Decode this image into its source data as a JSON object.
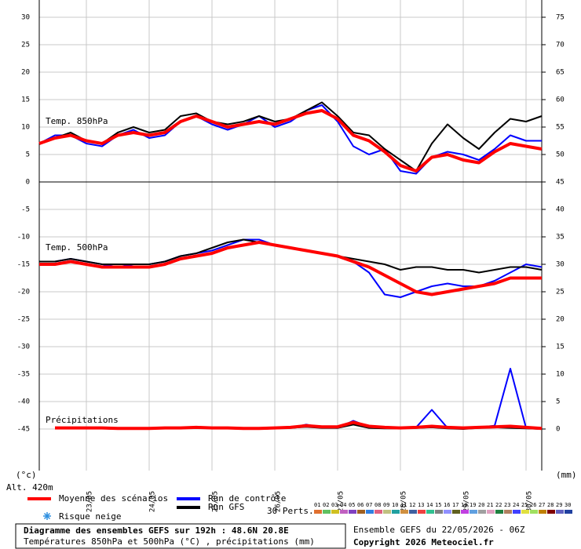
{
  "chart_data": {
    "type": "line",
    "categories": [
      null,
      null,
      null,
      "23/05",
      null,
      null,
      null,
      "24/05",
      null,
      null,
      null,
      "25/05",
      null,
      null,
      null,
      "26/05",
      null,
      null,
      null,
      "27/05",
      null,
      null,
      null,
      "28/05",
      null,
      null,
      null,
      "29/05",
      null,
      null,
      null,
      "30/05",
      null
    ],
    "ylim": [
      -52.57,
      33.14
    ],
    "yticks": [
      30,
      25,
      20,
      15,
      10,
      5,
      0,
      -5,
      -10,
      -15,
      -20,
      -25,
      -30,
      -35,
      -40,
      -45
    ],
    "y2lim": [
      -7.57,
      78.14
    ],
    "y2ticks": [
      75,
      70,
      65,
      60,
      55,
      50,
      45,
      40,
      35,
      30,
      25,
      20,
      15,
      10,
      5,
      0
    ],
    "grid": true,
    "y_label": "(°c)",
    "y2_label": "(mm)",
    "altitude": "Alt. 420m",
    "panels": [
      {
        "label": "Temp. 850hPa",
        "series": [
          {
            "color": "#0000ff",
            "width": 2,
            "values": [
              7,
              8.5,
              8.5,
              7,
              6.5,
              8.5,
              9.5,
              8,
              8.5,
              11,
              12,
              10.5,
              9.5,
              10.5,
              12,
              10,
              11,
              13,
              14,
              11,
              6.5,
              5,
              6,
              2,
              1.5,
              4.5,
              5.5,
              5,
              4,
              6,
              8.5,
              7.5,
              7.5
            ]
          },
          {
            "color": "#000000",
            "width": 2,
            "values": [
              7,
              8,
              9,
              7.5,
              7,
              9,
              10,
              9,
              9.5,
              12,
              12.5,
              11,
              10.5,
              11,
              12,
              11,
              11.5,
              13,
              14.5,
              12,
              9,
              8.5,
              6,
              4,
              2,
              7,
              10.5,
              8,
              6,
              9,
              11.5,
              11,
              12
            ]
          },
          {
            "color": "#ff0000",
            "width": 4,
            "values": [
              7,
              8,
              8.5,
              7.5,
              7,
              8.5,
              9,
              8.5,
              9,
              11,
              12,
              11,
              10,
              10.5,
              11,
              10.5,
              11.5,
              12.5,
              13,
              11.5,
              8.5,
              7.5,
              5.5,
              3,
              2,
              4.5,
              5,
              4,
              3.5,
              5.5,
              7,
              6.5,
              6
            ]
          }
        ]
      },
      {
        "label": "Temp. 500hPa",
        "series": [
          {
            "color": "#0000ff",
            "width": 2,
            "values": [
              -14.5,
              -14.5,
              -14,
              -14.5,
              -15,
              -15.5,
              -15,
              -15,
              -14.5,
              -13.5,
              -13,
              -12.5,
              -11.5,
              -10.5,
              -10.5,
              -11.5,
              -12,
              -12.5,
              -13,
              -13.5,
              -14.5,
              -16.5,
              -20.5,
              -21,
              -20,
              -19,
              -18.5,
              -19,
              -19,
              -18,
              -16.5,
              -15,
              -15.5
            ]
          },
          {
            "color": "#000000",
            "width": 2,
            "values": [
              -14.5,
              -14.5,
              -14,
              -14.5,
              -15,
              -15,
              -15,
              -15,
              -14.5,
              -13.5,
              -13,
              -12,
              -11,
              -10.5,
              -11,
              -11.5,
              -12,
              -12.5,
              -13,
              -13.5,
              -14,
              -14.5,
              -15,
              -16,
              -15.5,
              -15.5,
              -16,
              -16,
              -16.5,
              -16,
              -15.5,
              -15.5,
              -16
            ]
          },
          {
            "color": "#ff0000",
            "width": 4,
            "values": [
              -15,
              -15,
              -14.5,
              -15,
              -15.5,
              -15.5,
              -15.5,
              -15.5,
              -15,
              -14,
              -13.5,
              -13,
              -12,
              -11.5,
              -11,
              -11.5,
              -12,
              -12.5,
              -13,
              -13.5,
              -14.5,
              -15.5,
              -17,
              -18.5,
              -20,
              -20.5,
              -20,
              -19.5,
              -19,
              -18.5,
              -17.5,
              -17.5,
              -17.5
            ]
          }
        ]
      },
      {
        "label": "Précipitations",
        "series": [
          {
            "color": "#0000ff",
            "width": 2,
            "axis": "y2",
            "values": [
              null,
              0.1,
              0.1,
              0.1,
              0.1,
              0,
              0,
              0.1,
              0.1,
              0.1,
              0.2,
              0.1,
              0.2,
              0,
              0,
              0.1,
              0.2,
              0.8,
              0.3,
              0.2,
              1.5,
              0.4,
              0.2,
              0.1,
              0.3,
              3.5,
              0.2,
              0.1,
              0.3,
              0.6,
              11,
              0.2,
              0
            ]
          },
          {
            "color": "#000000",
            "width": 2,
            "axis": "y2",
            "values": [
              null,
              0.1,
              0.1,
              0.1,
              0.1,
              0,
              0,
              0.1,
              0.1,
              0.1,
              0.3,
              0.1,
              0.1,
              0,
              0,
              0.1,
              0.2,
              0.4,
              0.2,
              0.2,
              0.8,
              0.2,
              0.1,
              0.1,
              0.2,
              0.3,
              0.1,
              0,
              0.2,
              0.3,
              0.2,
              0.1,
              0
            ]
          },
          {
            "color": "#ff0000",
            "width": 4,
            "axis": "y2",
            "values": [
              null,
              0.2,
              0.2,
              0.2,
              0.2,
              0.1,
              0.1,
              0.1,
              0.2,
              0.2,
              0.3,
              0.2,
              0.2,
              0.1,
              0.1,
              0.2,
              0.3,
              0.6,
              0.4,
              0.4,
              1.2,
              0.5,
              0.3,
              0.2,
              0.3,
              0.5,
              0.3,
              0.2,
              0.3,
              0.4,
              0.5,
              0.3,
              0.1
            ]
          }
        ]
      }
    ],
    "legend": [
      {
        "name": "Moyenne des scénarios",
        "color": "#ff0000"
      },
      {
        "name": "Run de contrôle",
        "color": "#0000ff"
      },
      {
        "name": "Run GFS",
        "color": "#000000"
      }
    ],
    "snow_label": "Risque neige",
    "perturbations": {
      "label": "30 Perts.",
      "names": [
        "01",
        "02",
        "03",
        "04",
        "05",
        "06",
        "07",
        "08",
        "09",
        "10",
        "11",
        "12",
        "13",
        "14",
        "15",
        "16",
        "17",
        "18",
        "19",
        "20",
        "21",
        "22",
        "23",
        "24",
        "25",
        "26",
        "27",
        "28",
        "29",
        "30"
      ],
      "colors": [
        "#e07030",
        "#60c060",
        "#d0c020",
        "#c060c0",
        "#8040c0",
        "#a06020",
        "#3080e0",
        "#e06080",
        "#c0c080",
        "#20a0a0",
        "#d09040",
        "#4060a0",
        "#f04040",
        "#30c090",
        "#808080",
        "#9090ff",
        "#606020",
        "#c040e0",
        "#60a0e0",
        "#a0a0a0",
        "#e0a0c0",
        "#208040",
        "#b08060",
        "#4040ff",
        "#e0e040",
        "#a0e060",
        "#c08000",
        "#800000",
        "#6060c0",
        "#2040a0"
      ]
    },
    "footer": {
      "title": "Diagramme des ensembles GEFS sur 192h : 48.6N 20.8E",
      "subtitle": "Températures 850hPa et 500hPa (°C) , précipitations (mm)",
      "run": "Ensemble GEFS du 22/05/2026 - 06Z",
      "copyright": "Copyright 2026 Meteociel.fr"
    }
  }
}
